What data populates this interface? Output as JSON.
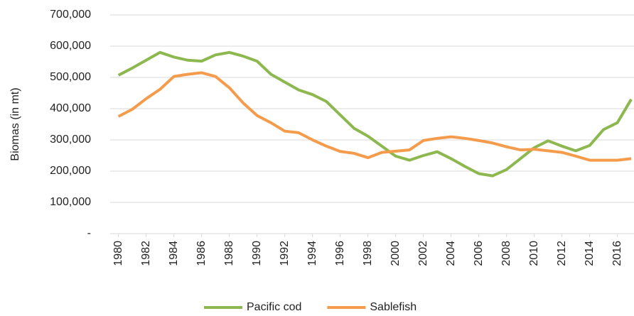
{
  "chart_data": {
    "type": "line",
    "ylabel": "Biomas (in mt)",
    "x": [
      1980,
      1981,
      1982,
      1983,
      1984,
      1985,
      1986,
      1987,
      1988,
      1989,
      1990,
      1991,
      1992,
      1993,
      1994,
      1995,
      1996,
      1997,
      1998,
      1999,
      2000,
      2001,
      2002,
      2003,
      2004,
      2005,
      2006,
      2007,
      2008,
      2009,
      2010,
      2011,
      2012,
      2013,
      2014,
      2015,
      2016,
      2017
    ],
    "xlim": [
      1979.4,
      2017.2
    ],
    "xticks": [
      1980,
      1982,
      1984,
      1986,
      1988,
      1990,
      1992,
      1994,
      1996,
      1998,
      2000,
      2002,
      2004,
      2006,
      2008,
      2010,
      2012,
      2014,
      2016
    ],
    "ylim": [
      0,
      700000
    ],
    "yticks": [
      {
        "value": 0,
        "label": "-"
      },
      {
        "value": 100000,
        "label": "100,000"
      },
      {
        "value": 200000,
        "label": "200,000"
      },
      {
        "value": 300000,
        "label": "300,000"
      },
      {
        "value": 400000,
        "label": "400,000"
      },
      {
        "value": 500000,
        "label": "500,000"
      },
      {
        "value": 600000,
        "label": "600,000"
      },
      {
        "value": 700000,
        "label": "700,000"
      }
    ],
    "grid": true,
    "legend": "bottom",
    "series": [
      {
        "name": "Pacific cod",
        "color": "#8db850",
        "values": [
          507000,
          530000,
          555000,
          580000,
          565000,
          555000,
          552000,
          572000,
          580000,
          568000,
          552000,
          510000,
          485000,
          460000,
          445000,
          423000,
          380000,
          337000,
          312000,
          280000,
          248000,
          235000,
          250000,
          262000,
          240000,
          215000,
          192000,
          185000,
          205000,
          240000,
          275000,
          297000,
          280000,
          265000,
          282000,
          333000,
          355000,
          430000
        ]
      },
      {
        "name": "Sablefish",
        "color": "#f59b4c",
        "values": [
          375000,
          398000,
          432000,
          462000,
          503000,
          510000,
          515000,
          503000,
          467000,
          418000,
          378000,
          355000,
          328000,
          323000,
          300000,
          280000,
          263000,
          257000,
          243000,
          260000,
          264000,
          268000,
          298000,
          305000,
          310000,
          305000,
          298000,
          290000,
          278000,
          268000,
          270000,
          265000,
          260000,
          248000,
          235000,
          235000,
          235000,
          240000
        ]
      }
    ]
  }
}
